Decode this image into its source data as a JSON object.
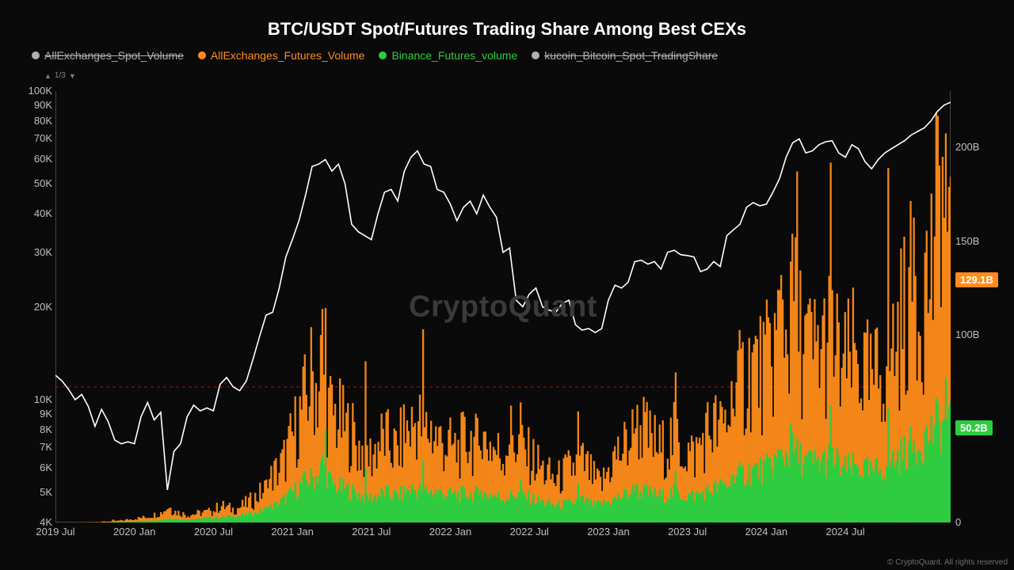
{
  "title": "BTC/USDT Spot/Futures Trading Share Among Best CEXs",
  "watermark": "CryptoQuant",
  "copyright": "© CryptoQuant. All rights reserved",
  "paginator": {
    "text": "1/3"
  },
  "colors": {
    "background": "#0a0a0a",
    "price_line": "#ffffff",
    "futures_all": "#ff8c1a",
    "futures_binance": "#2ecc40",
    "gray": "#b0b0b0",
    "dashed": "#8b1a1a"
  },
  "legend": [
    {
      "label": "AllExchanges_Spot_Volume",
      "color": "#b0b0b0",
      "strikethrough": true
    },
    {
      "label": "AllExchanges_Futures_Volume",
      "color": "#ff8c1a",
      "strikethrough": false
    },
    {
      "label": "Binance_Futures_volume",
      "color": "#2ecc40",
      "strikethrough": false
    },
    {
      "label": "kucoin_Bitcoin_Spot_TradingShare",
      "color": "#b0b0b0",
      "strikethrough": true
    }
  ],
  "badges": [
    {
      "text": "129.1B",
      "color": "#ff8c1a",
      "y_value": 129.1
    },
    {
      "text": "50.2B",
      "color": "#2ecc40",
      "y_value": 50.2
    }
  ],
  "left_axis": {
    "type": "log",
    "min": 4000,
    "max": 100000,
    "ticks": [
      {
        "v": 100000,
        "label": "100K"
      },
      {
        "v": 90000,
        "label": "90K"
      },
      {
        "v": 80000,
        "label": "80K"
      },
      {
        "v": 70000,
        "label": "70K"
      },
      {
        "v": 60000,
        "label": "60K"
      },
      {
        "v": 50000,
        "label": "50K"
      },
      {
        "v": 40000,
        "label": "40K"
      },
      {
        "v": 30000,
        "label": "30K"
      },
      {
        "v": 20000,
        "label": "20K"
      },
      {
        "v": 10000,
        "label": "10K"
      },
      {
        "v": 9000,
        "label": "9K"
      },
      {
        "v": 8000,
        "label": "8K"
      },
      {
        "v": 7000,
        "label": "7K"
      },
      {
        "v": 6000,
        "label": "6K"
      },
      {
        "v": 5000,
        "label": "5K"
      },
      {
        "v": 4000,
        "label": "4K"
      }
    ]
  },
  "right_axis": {
    "type": "linear",
    "min": 0,
    "max": 230,
    "ticks": [
      {
        "v": 0,
        "label": "0"
      },
      {
        "v": 50,
        "label": "50B"
      },
      {
        "v": 100,
        "label": "100B"
      },
      {
        "v": 150,
        "label": "150B"
      },
      {
        "v": 200,
        "label": "200B"
      }
    ]
  },
  "x_axis": {
    "min": 0,
    "max": 68,
    "ticks": [
      {
        "v": 0,
        "label": "2019 Jul"
      },
      {
        "v": 6,
        "label": "2020 Jan"
      },
      {
        "v": 12,
        "label": "2020 Jul"
      },
      {
        "v": 18,
        "label": "2021 Jan"
      },
      {
        "v": 24,
        "label": "2021 Jul"
      },
      {
        "v": 30,
        "label": "2022 Jan"
      },
      {
        "v": 36,
        "label": "2022 Jul"
      },
      {
        "v": 42,
        "label": "2023 Jan"
      },
      {
        "v": 48,
        "label": "2023 Jul"
      },
      {
        "v": 54,
        "label": "2024 Jan"
      },
      {
        "v": 60,
        "label": "2024 Jul"
      }
    ]
  },
  "dashed_reference": {
    "value": 11000
  },
  "price_series": [
    [
      0,
      12000
    ],
    [
      0.5,
      11500
    ],
    [
      1,
      10800
    ],
    [
      1.5,
      10000
    ],
    [
      2,
      10400
    ],
    [
      2.5,
      9500
    ],
    [
      3,
      8200
    ],
    [
      3.5,
      9300
    ],
    [
      4,
      8500
    ],
    [
      4.5,
      7400
    ],
    [
      5,
      7200
    ],
    [
      5.5,
      7300
    ],
    [
      6,
      7200
    ],
    [
      6.5,
      8800
    ],
    [
      7,
      9800
    ],
    [
      7.5,
      8600
    ],
    [
      8,
      9100
    ],
    [
      8.5,
      5100
    ],
    [
      9,
      6800
    ],
    [
      9.5,
      7200
    ],
    [
      10,
      8800
    ],
    [
      10.5,
      9600
    ],
    [
      11,
      9200
    ],
    [
      11.5,
      9400
    ],
    [
      12,
      9200
    ],
    [
      12.5,
      11200
    ],
    [
      13,
      11800
    ],
    [
      13.5,
      11000
    ],
    [
      14,
      10700
    ],
    [
      14.5,
      11500
    ],
    [
      15,
      13500
    ],
    [
      15.5,
      16000
    ],
    [
      16,
      18800
    ],
    [
      16.5,
      19200
    ],
    [
      17,
      23000
    ],
    [
      17.5,
      29000
    ],
    [
      18,
      33000
    ],
    [
      18.5,
      38000
    ],
    [
      19,
      46000
    ],
    [
      19.5,
      57000
    ],
    [
      20,
      58000
    ],
    [
      20.5,
      60000
    ],
    [
      21,
      55000
    ],
    [
      21.5,
      58000
    ],
    [
      22,
      50000
    ],
    [
      22.5,
      37000
    ],
    [
      23,
      35000
    ],
    [
      23.5,
      34000
    ],
    [
      24,
      33000
    ],
    [
      24.5,
      40000
    ],
    [
      25,
      47000
    ],
    [
      25.5,
      48000
    ],
    [
      26,
      44000
    ],
    [
      26.5,
      55000
    ],
    [
      27,
      61000
    ],
    [
      27.5,
      64000
    ],
    [
      28,
      58000
    ],
    [
      28.5,
      57000
    ],
    [
      29,
      48000
    ],
    [
      29.5,
      47000
    ],
    [
      30,
      43000
    ],
    [
      30.5,
      38000
    ],
    [
      31,
      42000
    ],
    [
      31.5,
      44000
    ],
    [
      32,
      40000
    ],
    [
      32.5,
      46000
    ],
    [
      33,
      42000
    ],
    [
      33.5,
      39000
    ],
    [
      34,
      30000
    ],
    [
      34.5,
      31000
    ],
    [
      35,
      21000
    ],
    [
      35.5,
      20000
    ],
    [
      36,
      22000
    ],
    [
      36.5,
      23000
    ],
    [
      37,
      20000
    ],
    [
      37.5,
      19500
    ],
    [
      38,
      19200
    ],
    [
      38.5,
      20500
    ],
    [
      39,
      21000
    ],
    [
      39.5,
      17500
    ],
    [
      40,
      16800
    ],
    [
      40.5,
      17000
    ],
    [
      41,
      16500
    ],
    [
      41.5,
      17000
    ],
    [
      42,
      21000
    ],
    [
      42.5,
      23500
    ],
    [
      43,
      23000
    ],
    [
      43.5,
      24000
    ],
    [
      44,
      28000
    ],
    [
      44.5,
      28300
    ],
    [
      45,
      27500
    ],
    [
      45.5,
      28000
    ],
    [
      46,
      26500
    ],
    [
      46.5,
      30000
    ],
    [
      47,
      30500
    ],
    [
      47.5,
      29500
    ],
    [
      48,
      29300
    ],
    [
      48.5,
      29000
    ],
    [
      49,
      26000
    ],
    [
      49.5,
      26500
    ],
    [
      50,
      28000
    ],
    [
      50.5,
      27000
    ],
    [
      51,
      34000
    ],
    [
      51.5,
      35500
    ],
    [
      52,
      37000
    ],
    [
      52.5,
      42000
    ],
    [
      53,
      43500
    ],
    [
      53.5,
      42500
    ],
    [
      54,
      43000
    ],
    [
      54.5,
      47000
    ],
    [
      55,
      52000
    ],
    [
      55.5,
      61000
    ],
    [
      56,
      68000
    ],
    [
      56.5,
      70000
    ],
    [
      57,
      63000
    ],
    [
      57.5,
      64000
    ],
    [
      58,
      67000
    ],
    [
      58.5,
      68500
    ],
    [
      59,
      69000
    ],
    [
      59.5,
      63000
    ],
    [
      60,
      61000
    ],
    [
      60.5,
      67000
    ],
    [
      61,
      65000
    ],
    [
      61.5,
      59000
    ],
    [
      62,
      56000
    ],
    [
      62.5,
      60000
    ],
    [
      63,
      63000
    ],
    [
      63.5,
      65000
    ],
    [
      64,
      67000
    ],
    [
      64.5,
      69000
    ],
    [
      65,
      72000
    ],
    [
      65.5,
      74000
    ],
    [
      66,
      76000
    ],
    [
      66.5,
      80000
    ],
    [
      67,
      86000
    ],
    [
      67.5,
      90000
    ],
    [
      68,
      92000
    ]
  ],
  "futures_all_series": [
    [
      0,
      0
    ],
    [
      2,
      0
    ],
    [
      4,
      0.5
    ],
    [
      5,
      1
    ],
    [
      6,
      2
    ],
    [
      7,
      3
    ],
    [
      8,
      5
    ],
    [
      8.5,
      8
    ],
    [
      9,
      6
    ],
    [
      10,
      4
    ],
    [
      11,
      5
    ],
    [
      12,
      6
    ],
    [
      12.5,
      9
    ],
    [
      13,
      8
    ],
    [
      13.5,
      7
    ],
    [
      14,
      8
    ],
    [
      14.5,
      10
    ],
    [
      15,
      12
    ],
    [
      15.5,
      15
    ],
    [
      16,
      18
    ],
    [
      16.5,
      25
    ],
    [
      17,
      28
    ],
    [
      17.5,
      35
    ],
    [
      18,
      45
    ],
    [
      18.5,
      55
    ],
    [
      19,
      65
    ],
    [
      19.5,
      78
    ],
    [
      20,
      70
    ],
    [
      20.3,
      95
    ],
    [
      20.5,
      62
    ],
    [
      21,
      58
    ],
    [
      21.5,
      55
    ],
    [
      22,
      50
    ],
    [
      22.5,
      48
    ],
    [
      23,
      40
    ],
    [
      23.5,
      38
    ],
    [
      24,
      35
    ],
    [
      24.5,
      42
    ],
    [
      25,
      45
    ],
    [
      25.5,
      40
    ],
    [
      26,
      38
    ],
    [
      26.5,
      48
    ],
    [
      27,
      50
    ],
    [
      27.5,
      55
    ],
    [
      28,
      48
    ],
    [
      28.5,
      50
    ],
    [
      29,
      45
    ],
    [
      29.5,
      42
    ],
    [
      30,
      40
    ],
    [
      30.5,
      38
    ],
    [
      31,
      42
    ],
    [
      31.5,
      45
    ],
    [
      32,
      40
    ],
    [
      32.5,
      44
    ],
    [
      33,
      42
    ],
    [
      33.5,
      38
    ],
    [
      34,
      35
    ],
    [
      34.5,
      48
    ],
    [
      35,
      42
    ],
    [
      35.5,
      38
    ],
    [
      36,
      35
    ],
    [
      36.5,
      32
    ],
    [
      37,
      28
    ],
    [
      37.5,
      25
    ],
    [
      38,
      22
    ],
    [
      38.5,
      25
    ],
    [
      39,
      28
    ],
    [
      39.5,
      30
    ],
    [
      40,
      32
    ],
    [
      40.5,
      28
    ],
    [
      41,
      22
    ],
    [
      41.5,
      20
    ],
    [
      42,
      28
    ],
    [
      42.5,
      35
    ],
    [
      43,
      38
    ],
    [
      43.5,
      42
    ],
    [
      44,
      48
    ],
    [
      44.5,
      52
    ],
    [
      45,
      45
    ],
    [
      45.5,
      42
    ],
    [
      46,
      38
    ],
    [
      46.5,
      42
    ],
    [
      47,
      45
    ],
    [
      47.5,
      40
    ],
    [
      48,
      38
    ],
    [
      48.5,
      35
    ],
    [
      49,
      42
    ],
    [
      49.5,
      48
    ],
    [
      50,
      52
    ],
    [
      50.5,
      48
    ],
    [
      51,
      55
    ],
    [
      51.5,
      65
    ],
    [
      52,
      72
    ],
    [
      52.5,
      78
    ],
    [
      53,
      85
    ],
    [
      53.5,
      80
    ],
    [
      54,
      82
    ],
    [
      54.5,
      90
    ],
    [
      55,
      105
    ],
    [
      55.3,
      125
    ],
    [
      55.5,
      95
    ],
    [
      56,
      110
    ],
    [
      56.3,
      145
    ],
    [
      56.5,
      100
    ],
    [
      57,
      95
    ],
    [
      57.5,
      88
    ],
    [
      58,
      92
    ],
    [
      58.5,
      95
    ],
    [
      59,
      98
    ],
    [
      59.5,
      85
    ],
    [
      60,
      80
    ],
    [
      60.5,
      88
    ],
    [
      61,
      85
    ],
    [
      61.5,
      78
    ],
    [
      62,
      72
    ],
    [
      62.5,
      78
    ],
    [
      63,
      85
    ],
    [
      63.5,
      92
    ],
    [
      64,
      100
    ],
    [
      64.5,
      112
    ],
    [
      65,
      120
    ],
    [
      65.3,
      160
    ],
    [
      65.5,
      115
    ],
    [
      66,
      125
    ],
    [
      66.5,
      135
    ],
    [
      67,
      155
    ],
    [
      67.3,
      210
    ],
    [
      67.5,
      145
    ],
    [
      68,
      129
    ]
  ],
  "futures_binance_series": [
    [
      0,
      0
    ],
    [
      4,
      0
    ],
    [
      6,
      0.5
    ],
    [
      8,
      1.5
    ],
    [
      9,
      2
    ],
    [
      10,
      1.5
    ],
    [
      11,
      2
    ],
    [
      12,
      2.5
    ],
    [
      13,
      3
    ],
    [
      14,
      3.5
    ],
    [
      15,
      5
    ],
    [
      16,
      7
    ],
    [
      17,
      10
    ],
    [
      18,
      16
    ],
    [
      19,
      22
    ],
    [
      20,
      25
    ],
    [
      20.3,
      32
    ],
    [
      21,
      20
    ],
    [
      22,
      18
    ],
    [
      23,
      15
    ],
    [
      24,
      13
    ],
    [
      25,
      16
    ],
    [
      26,
      14
    ],
    [
      27,
      18
    ],
    [
      28,
      17
    ],
    [
      29,
      16
    ],
    [
      30,
      15
    ],
    [
      31,
      15
    ],
    [
      32,
      15
    ],
    [
      33,
      15
    ],
    [
      34,
      13
    ],
    [
      35,
      15
    ],
    [
      36,
      13
    ],
    [
      37,
      11
    ],
    [
      38,
      9
    ],
    [
      39,
      10
    ],
    [
      40,
      12
    ],
    [
      41,
      9
    ],
    [
      42,
      11
    ],
    [
      43,
      14
    ],
    [
      44,
      17
    ],
    [
      45,
      16
    ],
    [
      46,
      14
    ],
    [
      47,
      16
    ],
    [
      48,
      14
    ],
    [
      49,
      15
    ],
    [
      50,
      18
    ],
    [
      51,
      20
    ],
    [
      52,
      25
    ],
    [
      53,
      28
    ],
    [
      54,
      28
    ],
    [
      55,
      35
    ],
    [
      56,
      38
    ],
    [
      57,
      32
    ],
    [
      58,
      32
    ],
    [
      59,
      34
    ],
    [
      60,
      28
    ],
    [
      61,
      30
    ],
    [
      62,
      26
    ],
    [
      63,
      30
    ],
    [
      64,
      35
    ],
    [
      65,
      40
    ],
    [
      66,
      44
    ],
    [
      67,
      52
    ],
    [
      68,
      50
    ]
  ]
}
